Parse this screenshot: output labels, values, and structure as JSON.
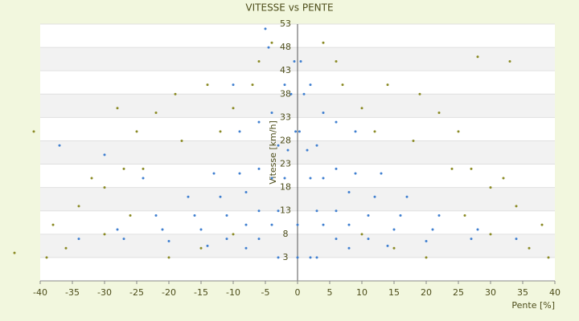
{
  "chart_data": {
    "type": "scatter",
    "title": "VITESSE vs PENTE",
    "x_label": "Pente [%]",
    "y_label": "Vitesse [km/h]",
    "xlim": [
      -40,
      40
    ],
    "ylim": [
      -2,
      53
    ],
    "xticks": [
      -40,
      -35,
      -30,
      -25,
      -20,
      -15,
      -10,
      -5,
      0,
      5,
      10,
      15,
      20,
      25,
      30,
      35,
      40
    ],
    "yticks": [
      3,
      8,
      13,
      18,
      23,
      28,
      33,
      38,
      43,
      48,
      53
    ],
    "bands": true,
    "series": [
      {
        "name": "blue",
        "color": "#3f7fd0",
        "x": [
          1,
          1.5,
          2,
          3,
          4,
          6,
          8,
          2,
          3,
          4,
          6,
          8,
          11,
          14,
          4,
          6,
          8,
          11,
          15,
          20,
          6,
          9,
          12,
          16,
          21,
          27,
          9,
          13,
          17,
          22,
          28,
          34,
          0.5,
          0.3,
          0,
          0,
          2,
          3,
          -1,
          -1.5,
          -2,
          -3,
          -4,
          -6,
          -8,
          -2,
          -3,
          -4,
          -6,
          -8,
          -11,
          -14,
          -4,
          -6,
          -8,
          -11,
          -15,
          -20,
          -6,
          -9,
          -12,
          -16,
          -21,
          -27,
          -9,
          -13,
          -17,
          -22,
          -28,
          -34,
          -0.5,
          -0.3,
          -5,
          -4.5,
          -3,
          -10,
          -24,
          -30,
          -37
        ],
        "y": [
          38,
          26,
          20,
          13,
          10,
          7,
          5,
          40,
          27,
          20,
          13,
          10,
          7,
          5.5,
          34,
          22,
          17,
          12,
          9,
          6.5,
          32,
          21,
          16,
          12,
          9,
          7,
          30,
          21,
          16,
          12,
          9,
          7,
          45,
          30,
          10,
          3,
          3,
          3,
          38,
          26,
          20,
          13,
          10,
          7,
          5,
          40,
          27,
          20,
          13,
          10,
          7,
          5.5,
          34,
          22,
          17,
          12,
          9,
          6.5,
          32,
          21,
          16,
          12,
          9,
          7,
          30,
          21,
          16,
          12,
          9,
          7,
          45,
          30,
          52,
          48,
          3,
          40,
          20,
          25,
          27
        ]
      },
      {
        "name": "olive",
        "color": "#8a8a24",
        "x": [
          4,
          6,
          7,
          10,
          14,
          19,
          12,
          18,
          24,
          30,
          34,
          38,
          33,
          28,
          25,
          22,
          27,
          32,
          36,
          39,
          20,
          15,
          10,
          26,
          30,
          -4,
          -6,
          -7,
          -10,
          -14,
          -19,
          -12,
          -18,
          -24,
          -30,
          -34,
          -38,
          -28,
          -25,
          -22,
          -27,
          -32,
          -36,
          -39,
          -20,
          -15,
          -10,
          -26,
          -30,
          -41,
          -44
        ],
        "y": [
          49,
          45,
          40,
          35,
          40,
          38,
          30,
          28,
          22,
          18,
          14,
          10,
          45,
          46,
          30,
          34,
          22,
          20,
          5,
          3,
          3,
          5,
          8,
          12,
          8,
          49,
          45,
          40,
          35,
          40,
          38,
          30,
          28,
          22,
          18,
          14,
          10,
          35,
          30,
          34,
          22,
          20,
          5,
          3,
          3,
          5,
          8,
          12,
          8,
          30,
          4
        ]
      }
    ]
  }
}
